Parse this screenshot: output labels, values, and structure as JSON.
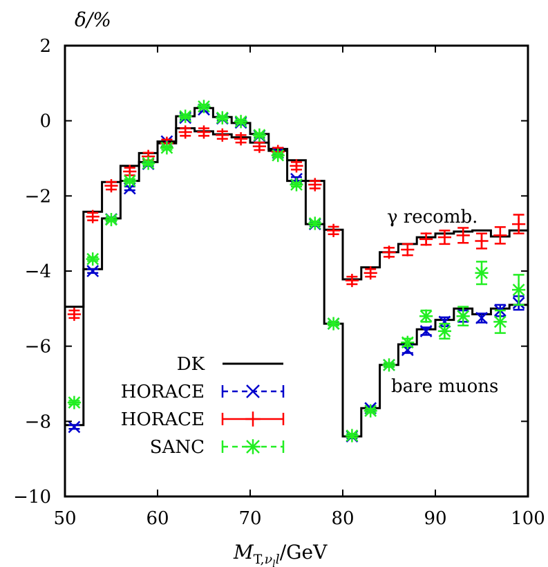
{
  "chart_data": {
    "type": "scatter",
    "ylabel": "δ/%",
    "xlabel": "M_T,ν_l l/GeV",
    "xlim": [
      50,
      100
    ],
    "ylim": [
      -10,
      2
    ],
    "xticks": [
      50,
      60,
      70,
      80,
      90,
      100
    ],
    "yticks": [
      2,
      0,
      -2,
      -4,
      -6,
      -8,
      -10
    ],
    "xtick_labels": [
      "50",
      "60",
      "70",
      "80",
      "90",
      "100"
    ],
    "ytick_labels": [
      "2",
      "0",
      "−2",
      "−4",
      "−6",
      "−8",
      "−10"
    ],
    "grid": false,
    "legend_position": "bottom-left",
    "annotations": [
      "γ recomb.",
      "bare muons"
    ],
    "colors": {
      "DK": "#000000",
      "HORACE_blue": "#0000cc",
      "HORACE_red": "#ff0000",
      "SANC": "#22ee22"
    },
    "bin_edges": [
      50,
      52,
      54,
      56,
      58,
      60,
      62,
      64,
      66,
      68,
      70,
      72,
      74,
      76,
      78,
      80,
      82,
      84,
      86,
      88,
      90,
      92,
      94,
      96,
      98,
      100
    ],
    "series": [
      {
        "name": "DK",
        "group": "recomb",
        "style": "step",
        "values": [
          -4.95,
          -2.42,
          -1.63,
          -1.2,
          -0.86,
          -0.55,
          -0.2,
          -0.28,
          -0.36,
          -0.44,
          -0.58,
          -0.75,
          -1.05,
          -1.6,
          -2.9,
          -4.22,
          -3.9,
          -3.5,
          -3.28,
          -3.1,
          -3.0,
          -2.95,
          -2.92,
          -3.08,
          -2.92
        ]
      },
      {
        "name": "DK",
        "group": "bare",
        "style": "step",
        "legend": false,
        "values": [
          -8.1,
          -3.95,
          -2.6,
          -1.6,
          -1.1,
          -0.6,
          0.12,
          0.34,
          0.1,
          -0.06,
          -0.35,
          -0.8,
          -1.6,
          -2.75,
          -5.4,
          -8.4,
          -7.65,
          -6.5,
          -5.95,
          -5.55,
          -5.3,
          -5.0,
          -5.15,
          -5.0,
          -4.9
        ]
      },
      {
        "name": "HORACE",
        "group": "bare",
        "style": "x",
        "color": "#0000cc",
        "values": [
          -8.15,
          -4.0,
          -2.62,
          -1.8,
          -1.15,
          -0.55,
          0.08,
          0.3,
          0.06,
          -0.05,
          -0.4,
          -0.85,
          -1.55,
          -2.75,
          -5.4,
          -8.4,
          -7.65,
          -6.5,
          -6.1,
          -5.6,
          -5.35,
          -5.2,
          -5.25,
          -5.05,
          -4.85
        ],
        "errors": [
          0.05,
          0.05,
          0.05,
          0.05,
          0.05,
          0.05,
          0.05,
          0.05,
          0.05,
          0.05,
          0.05,
          0.05,
          0.05,
          0.05,
          0.05,
          0.05,
          0.05,
          0.05,
          0.08,
          0.1,
          0.12,
          0.15,
          0.12,
          0.15,
          0.18
        ]
      },
      {
        "name": "HORACE",
        "group": "recomb",
        "style": "+",
        "color": "#ff0000",
        "values": [
          -5.15,
          -2.55,
          -1.73,
          -1.35,
          -0.95,
          -0.6,
          -0.3,
          -0.3,
          -0.38,
          -0.48,
          -0.68,
          -0.82,
          -1.2,
          -1.7,
          -2.92,
          -4.25,
          -4.05,
          -3.5,
          -3.43,
          -3.15,
          -3.1,
          -3.05,
          -3.2,
          -3.05,
          -2.75
        ],
        "errors": [
          0.1,
          0.1,
          0.1,
          0.1,
          0.1,
          0.1,
          0.1,
          0.1,
          0.1,
          0.1,
          0.1,
          0.1,
          0.1,
          0.1,
          0.1,
          0.1,
          0.1,
          0.12,
          0.15,
          0.15,
          0.18,
          0.2,
          0.2,
          0.22,
          0.25
        ]
      },
      {
        "name": "SANC",
        "group": "bare",
        "style": "*",
        "color": "#22ee22",
        "values": [
          -7.5,
          -3.68,
          -2.63,
          -1.6,
          -1.13,
          -0.72,
          0.12,
          0.38,
          0.08,
          -0.02,
          -0.38,
          -0.92,
          -1.7,
          -2.73,
          -5.4,
          -8.38,
          -7.72,
          -6.5,
          -5.9,
          -5.2,
          -5.6,
          -5.2,
          -4.05,
          -5.35,
          -4.5
        ],
        "errors": [
          0.05,
          0.05,
          0.05,
          0.05,
          0.05,
          0.05,
          0.05,
          0.05,
          0.05,
          0.05,
          0.05,
          0.05,
          0.05,
          0.05,
          0.05,
          0.05,
          0.05,
          0.05,
          0.1,
          0.15,
          0.2,
          0.25,
          0.3,
          0.3,
          0.4
        ]
      }
    ]
  }
}
